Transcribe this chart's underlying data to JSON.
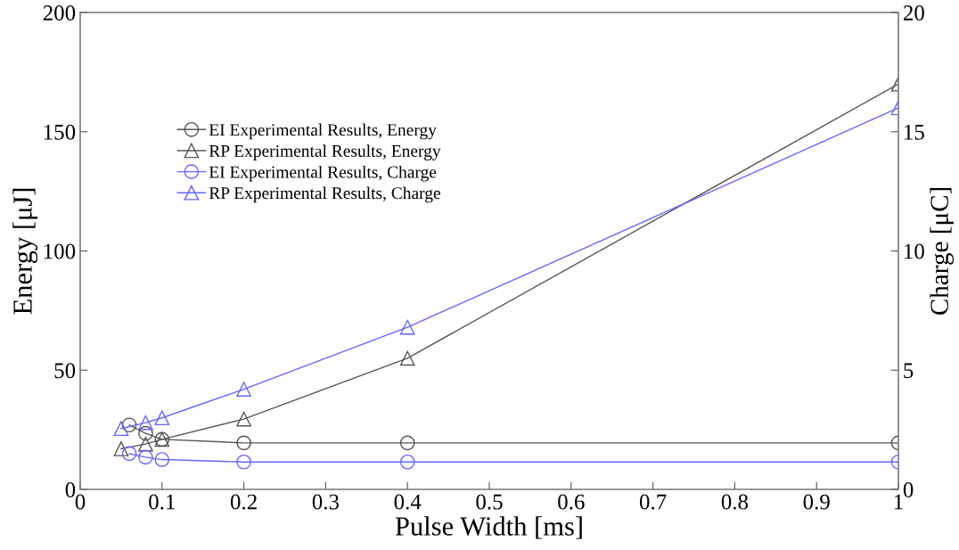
{
  "chart_data": {
    "type": "line",
    "xlabel": "Pulse Width [ms]",
    "ylabel": "Energy [μJ]",
    "y2label": "Charge [μC]",
    "xlim": [
      0,
      1
    ],
    "xticks": [
      0,
      0.1,
      0.2,
      0.3,
      0.4,
      0.5,
      0.6,
      0.7,
      0.8,
      0.9,
      1
    ],
    "ylim": [
      0,
      200
    ],
    "yticks": [
      0,
      50,
      100,
      150,
      200
    ],
    "y2lim": [
      0,
      20
    ],
    "y2ticks": [
      0,
      5,
      10,
      15,
      20
    ],
    "grid": false,
    "legend": "top left",
    "line_style": "solid",
    "series": [
      {
        "name": "EI Experimental Results, Energy",
        "color": "#555555",
        "marker": "circle",
        "x": [
          0.06,
          0.08,
          0.1,
          0.2,
          0.4,
          1.0
        ],
        "values": [
          27,
          23.5,
          21,
          19.5,
          19.5,
          19.5
        ]
      },
      {
        "name": "RP Experimental Results, Energy",
        "color": "#555555",
        "marker": "triangle",
        "x": [
          0.05,
          0.08,
          0.1,
          0.2,
          0.4,
          1.0
        ],
        "values": [
          17,
          19,
          21,
          29.5,
          55,
          170
        ]
      },
      {
        "name": "EI Experimental Results, Charge",
        "color": "#6666ff",
        "marker": "circle",
        "axis": "y2",
        "x": [
          0.06,
          0.08,
          0.1,
          0.2,
          0.4,
          1.0
        ],
        "values": [
          1.5,
          1.35,
          1.25,
          1.15,
          1.15,
          1.15
        ]
      },
      {
        "name": "RP Experimental Results, Charge",
        "color": "#6666ff",
        "marker": "triangle",
        "axis": "y2",
        "x": [
          0.05,
          0.08,
          0.1,
          0.2,
          0.4,
          1.0
        ],
        "values": [
          2.55,
          2.8,
          3.0,
          4.2,
          6.8,
          16
        ]
      }
    ]
  }
}
